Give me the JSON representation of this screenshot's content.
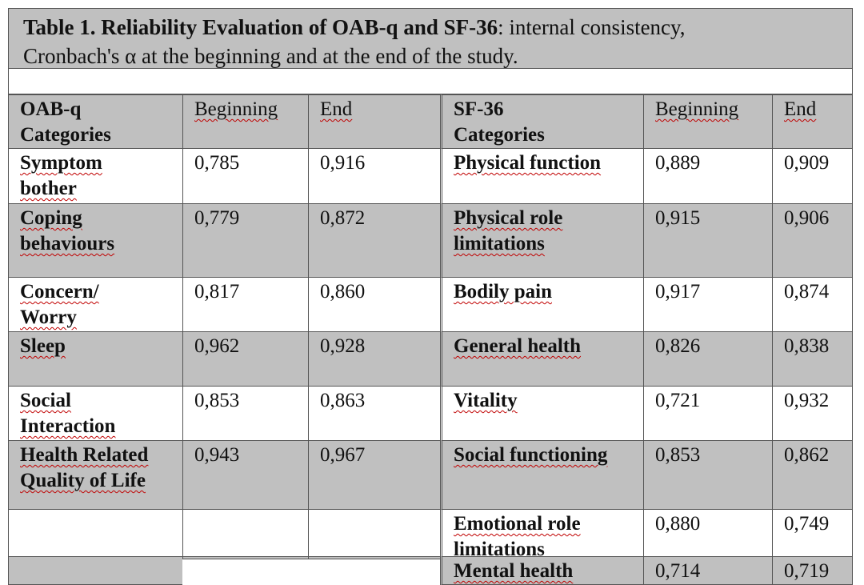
{
  "title": {
    "line1_bold": "Table 1. Reliability  Evaluation of OAB-q and SF-36",
    "line1_rest": ": internal consistency,",
    "line2": "Cronbach's α at the beginning and at the end of the study."
  },
  "headers": {
    "oab_category_line1": "OAB-q",
    "oab_category_line2": "Categories",
    "oab_beginning": "Beginning",
    "oab_end": "End",
    "sf_category_line1": "SF-36",
    "sf_category_line2": "Categories",
    "sf_beginning": "Beginning",
    "sf_end": "End"
  },
  "rows": [
    {
      "oab_l1": "Symptom",
      "oab_l2": "bother",
      "oab_b": "0,785",
      "oab_e": "0,916",
      "sf_l1": "Physical  function",
      "sf_l2": "",
      "sf_b": "0,889",
      "sf_e": "0,909"
    },
    {
      "oab_l1": "Coping",
      "oab_l2": "behaviours",
      "oab_b": "0,779",
      "oab_e": "0,872",
      "sf_l1": "Physical  role",
      "sf_l2": "limitations",
      "sf_b": "0,915",
      "sf_e": "0,906"
    },
    {
      "oab_l1": "Concern/",
      "oab_l2": "Worry",
      "oab_b": "0,817",
      "oab_e": "0,860",
      "sf_l1": "Bodily  pain",
      "sf_l2": "",
      "sf_b": "0,917",
      "sf_e": "0,874"
    },
    {
      "oab_l1": "Sleep",
      "oab_l2": "",
      "oab_b": "0,962",
      "oab_e": "0,928",
      "sf_l1": "General health",
      "sf_l2": "",
      "sf_b": "0,826",
      "sf_e": "0,838"
    },
    {
      "oab_l1": "Social",
      "oab_l2": "Interaction",
      "oab_b": "0,853",
      "oab_e": "0,863",
      "sf_l1": "Vitality",
      "sf_l2": "",
      "sf_b": "0,721",
      "sf_e": "0,932"
    },
    {
      "oab_l1": "Health Related",
      "oab_l2": "Quality of Life",
      "oab_b": "0,943",
      "oab_e": "0,967",
      "sf_l1": "Social  functioning",
      "sf_l2": "",
      "sf_b": "0,853",
      "sf_e": "0,862"
    },
    {
      "oab_l1": "",
      "oab_l2": "",
      "oab_b": "",
      "oab_e": "",
      "sf_l1": "Emotional  role",
      "sf_l2": "limitations",
      "sf_b": "0,880",
      "sf_e": "0,749"
    },
    {
      "oab_l1": "",
      "oab_l2": "",
      "oab_b": "",
      "oab_e": "",
      "sf_l1": "Mental health",
      "sf_l2": "",
      "sf_b": "0,714",
      "sf_e": "0,719"
    }
  ]
}
